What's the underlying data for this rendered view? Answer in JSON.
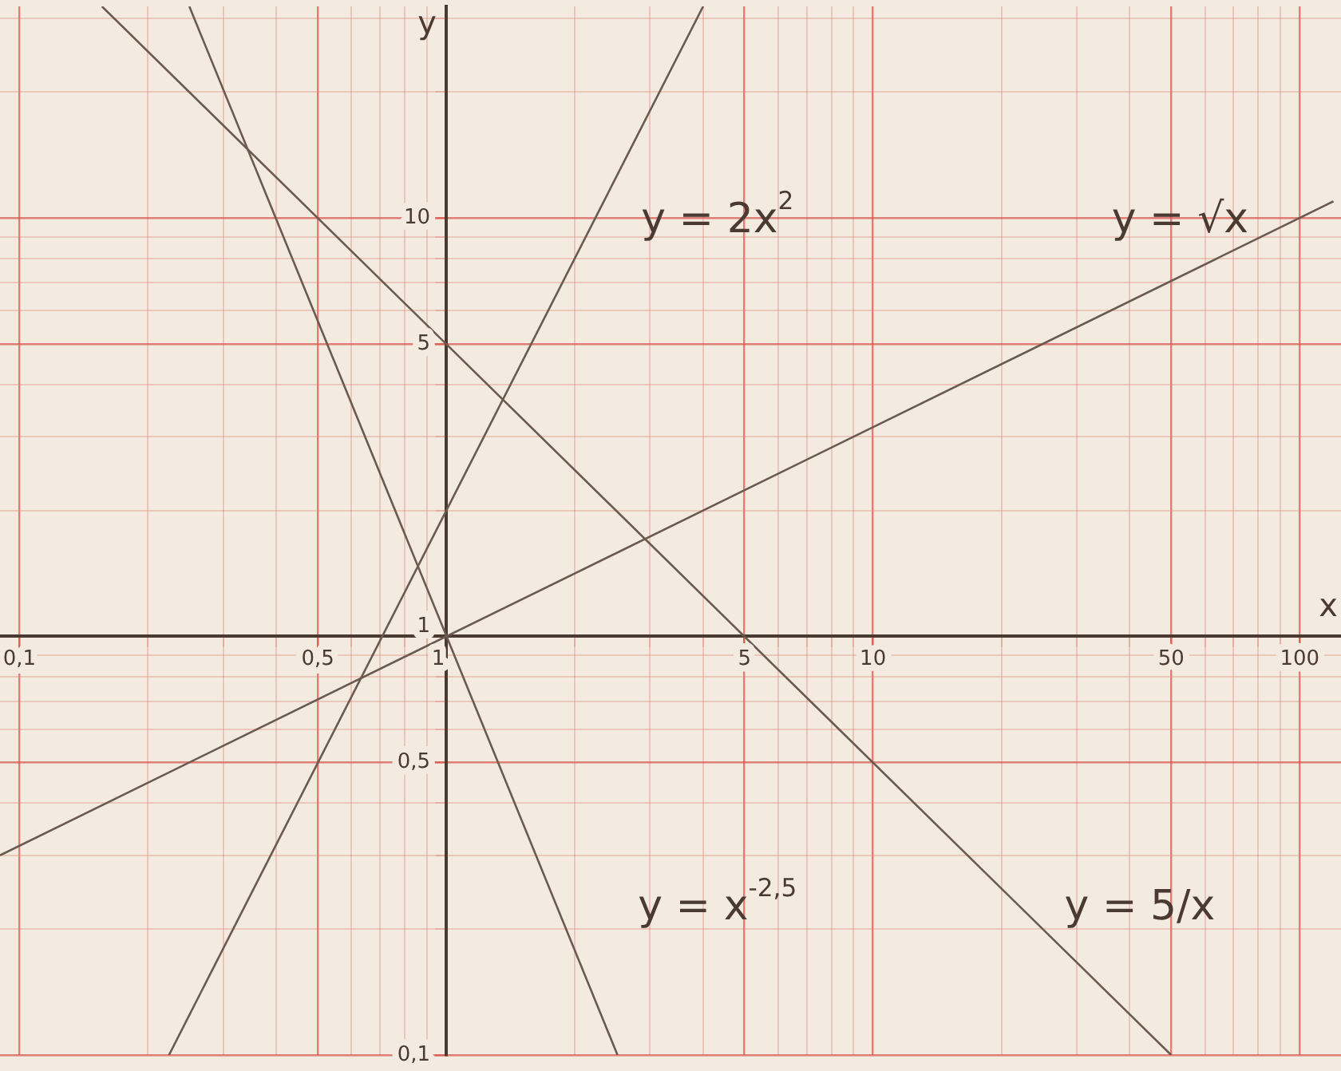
{
  "chart_data": {
    "type": "line",
    "xlabel": "x",
    "ylabel": "y",
    "log": "xy",
    "grid": true,
    "legend": false,
    "marker": "none",
    "line_style": "solid",
    "xlim": [
      0.09,
      125
    ],
    "ylim": [
      0.1,
      32
    ],
    "xticks": [
      {
        "value": 0.1,
        "label": "0,1"
      },
      {
        "value": 0.2,
        "label": null
      },
      {
        "value": 0.3,
        "label": null
      },
      {
        "value": 0.4,
        "label": null
      },
      {
        "value": 0.5,
        "label": "0,5"
      },
      {
        "value": 0.6,
        "label": null
      },
      {
        "value": 0.7,
        "label": null
      },
      {
        "value": 0.8,
        "label": null
      },
      {
        "value": 0.9,
        "label": null
      },
      1,
      {
        "value": 2,
        "label": null
      },
      {
        "value": 3,
        "label": null
      },
      {
        "value": 4,
        "label": null
      },
      5,
      {
        "value": 6,
        "label": null
      },
      {
        "value": 7,
        "label": null
      },
      {
        "value": 8,
        "label": null
      },
      {
        "value": 9,
        "label": null
      },
      10,
      {
        "value": 20,
        "label": null
      },
      {
        "value": 30,
        "label": null
      },
      {
        "value": 40,
        "label": null
      },
      50,
      {
        "value": 60,
        "label": null
      },
      {
        "value": 70,
        "label": null
      },
      {
        "value": 80,
        "label": null
      },
      {
        "value": 90,
        "label": null
      },
      100
    ],
    "yticks": [
      {
        "value": 0.1,
        "label": "0,1"
      },
      {
        "value": 0.2,
        "label": null
      },
      {
        "value": 0.3,
        "label": null
      },
      {
        "value": 0.4,
        "label": null
      },
      {
        "value": 0.5,
        "label": "0,5"
      },
      {
        "value": 0.6,
        "label": null
      },
      {
        "value": 0.7,
        "label": null
      },
      {
        "value": 0.8,
        "label": null
      },
      {
        "value": 0.9,
        "label": null
      },
      1,
      {
        "value": 2,
        "label": null
      },
      {
        "value": 3,
        "label": null
      },
      {
        "value": 4,
        "label": null
      },
      5,
      {
        "value": 6,
        "label": null
      },
      {
        "value": 7,
        "label": null
      },
      {
        "value": 8,
        "label": null
      },
      {
        "value": 9,
        "label": null
      },
      10,
      {
        "value": 20,
        "label": null
      },
      {
        "value": 30,
        "label": null
      }
    ],
    "series": [
      {
        "color": "#6b5a50",
        "x": [
          0.224,
          4
        ],
        "values": [
          0.1,
          32
        ]
      },
      {
        "color": "#6b5a50",
        "x": [
          0.09,
          120
        ],
        "values": [
          0.3,
          10.95
        ]
      },
      {
        "color": "#6b5a50",
        "x": [
          0.25,
          2.52
        ],
        "values": [
          32,
          0.1
        ]
      },
      {
        "color": "#6b5a50",
        "x": [
          0.156,
          50
        ],
        "values": [
          32,
          0.1
        ]
      }
    ],
    "annotations": [
      "y = 2x$^{2}$",
      "y = √x",
      "y = x$^{-2,5}$",
      "y = 5/x"
    ]
  }
}
